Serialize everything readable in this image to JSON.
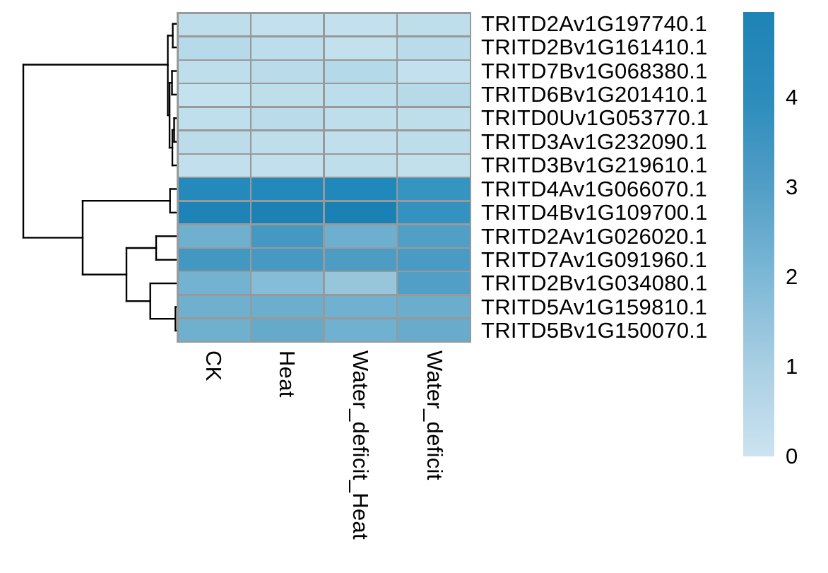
{
  "figure": {
    "background": "#ffffff",
    "description": "Clustered gene expression heatmap with row dendrogram and color legend"
  },
  "chart_data": {
    "type": "heatmap",
    "columns": [
      "CK",
      "Heat",
      "Water_deficit_Heat",
      "Water_deficit"
    ],
    "rows": [
      "TRITD2Av1G197740.1",
      "TRITD2Bv1G161410.1",
      "TRITD7Bv1G068380.1",
      "TRITD6Bv1G201410.1",
      "TRITD0Uv1G053770.1",
      "TRITD3Av1G232090.1",
      "TRITD3Bv1G219610.1",
      "TRITD4Av1G066070.1",
      "TRITD4Bv1G109700.1",
      "TRITD2Av1G026020.1",
      "TRITD7Av1G091960.1",
      "TRITD2Bv1G034080.1",
      "TRITD5Av1G159810.1",
      "TRITD5Bv1G150070.1"
    ],
    "cell_colors": [
      [
        "#BFDEEB",
        "#C2E0ED",
        "#C2E0ED",
        "#BEDEEB"
      ],
      [
        "#B6DAE9",
        "#BCDDEB",
        "#C3E0ED",
        "#B9DBEA"
      ],
      [
        "#BFDEEB",
        "#B9DBEA",
        "#B4D9E8",
        "#C2E0ED"
      ],
      [
        "#C4E1EE",
        "#BEDEEB",
        "#BCDDEB",
        "#B7DAE9"
      ],
      [
        "#C0DFEC",
        "#B9DBEA",
        "#BFDEEC",
        "#BFDEEC"
      ],
      [
        "#BCDCEA",
        "#BFDEEC",
        "#C0DEEC",
        "#BEDDEB"
      ],
      [
        "#C1DFEC",
        "#C1DFEC",
        "#BFDEEC",
        "#C2DFEC"
      ],
      [
        "#2589BB",
        "#2289BA",
        "#2088BA",
        "#3694C0"
      ],
      [
        "#1E83B7",
        "#1C82B6",
        "#1A81B5",
        "#3392BF"
      ],
      [
        "#6FB0CF",
        "#4498C2",
        "#6DAFCE",
        "#519FC6"
      ],
      [
        "#4398C2",
        "#4599C3",
        "#4C9CC4",
        "#4A9BC4"
      ],
      [
        "#74B2D1",
        "#85BCD7",
        "#96C5DC",
        "#519FC6"
      ],
      [
        "#6FB0CF",
        "#6CAECD",
        "#70B0D0",
        "#6BADCD"
      ],
      [
        "#6FB0CF",
        "#65AACB",
        "#70B0D0",
        "#68ABCC"
      ]
    ],
    "values_estimated": [
      [
        0.37,
        0.29,
        0.29,
        0.4
      ],
      [
        0.63,
        0.46,
        0.26,
        0.54
      ],
      [
        0.37,
        0.54,
        0.69,
        0.29
      ],
      [
        0.23,
        0.4,
        0.46,
        0.57
      ],
      [
        0.34,
        0.54,
        0.37,
        0.37
      ],
      [
        0.46,
        0.37,
        0.34,
        0.4
      ],
      [
        0.31,
        0.31,
        0.37,
        0.29
      ],
      [
        4.45,
        4.65,
        4.78,
        3.74
      ],
      [
        4.9,
        4.95,
        4.95,
        3.82
      ],
      [
        2.33,
        3.37,
        2.37,
        3.03
      ],
      [
        3.39,
        3.34,
        3.16,
        3.21
      ],
      [
        2.21,
        1.82,
        1.43,
        3.03
      ],
      [
        2.33,
        2.4,
        2.3,
        2.42
      ],
      [
        2.33,
        2.56,
        2.3,
        2.49
      ]
    ],
    "grid_color": "#999999",
    "dendrogram_color": "#000000",
    "colorbar": {
      "min": 0,
      "max": 4.95,
      "ticks": [
        "4",
        "3",
        "2",
        "1",
        "0"
      ],
      "tick_values": [
        4,
        3,
        2,
        1,
        0
      ],
      "gradient_values": [
        0,
        1,
        2,
        3,
        4,
        4.95
      ],
      "gradient_stops": [
        "#CCE3F0",
        "#A9CFE3",
        "#7DB8D6",
        "#529EC6",
        "#2C8CBC",
        "#1E83B6"
      ]
    },
    "row_dendrogram_segments": [
      [
        251,
        33.7,
        244.5,
        33.7
      ],
      [
        251,
        67.1,
        244.5,
        67.1
      ],
      [
        244.5,
        33.7,
        244.5,
        67.1
      ],
      [
        244.5,
        50.4,
        237.5,
        50.4
      ],
      [
        251,
        100.5,
        243.5,
        100.5
      ],
      [
        251,
        133.9,
        243.5,
        133.9
      ],
      [
        243.5,
        100.5,
        243.5,
        133.9
      ],
      [
        243.5,
        117.2,
        240,
        117.2
      ],
      [
        251,
        167.3,
        246.5,
        167.3
      ],
      [
        251,
        200.7,
        246.5,
        200.7
      ],
      [
        246.5,
        167.3,
        246.5,
        200.7
      ],
      [
        246.5,
        184,
        244,
        184
      ],
      [
        251,
        234.1,
        244,
        234.1
      ],
      [
        244,
        184,
        244,
        234.1
      ],
      [
        244,
        209,
        240,
        209
      ],
      [
        240,
        117.2,
        240,
        209
      ],
      [
        240,
        163.1,
        237.5,
        163.1
      ],
      [
        237.5,
        50.4,
        237.5,
        163.1
      ],
      [
        237.5,
        91.5,
        33,
        91.5
      ],
      [
        251,
        267.5,
        240.7,
        267.5
      ],
      [
        251,
        300.9,
        240.7,
        300.9
      ],
      [
        240.7,
        267.5,
        240.7,
        300.9
      ],
      [
        240.7,
        284.2,
        117,
        284.2
      ],
      [
        251,
        334.3,
        221,
        334.3
      ],
      [
        251,
        367.7,
        221,
        367.7
      ],
      [
        221,
        334.3,
        221,
        367.7
      ],
      [
        221,
        351,
        179,
        351
      ],
      [
        251,
        401.1,
        212.7,
        401.1
      ],
      [
        251,
        434.5,
        248.3,
        434.5
      ],
      [
        251,
        467.9,
        248.3,
        467.9
      ],
      [
        248.3,
        434.5,
        248.3,
        467.9
      ],
      [
        248.3,
        451.2,
        212.7,
        451.2
      ],
      [
        212.7,
        401.1,
        212.7,
        451.2
      ],
      [
        212.7,
        426.2,
        179,
        426.2
      ],
      [
        179,
        351,
        179,
        426.2
      ],
      [
        179,
        388.6,
        117,
        388.6
      ],
      [
        117,
        284.2,
        117,
        388.6
      ],
      [
        117,
        336.4,
        33,
        336.4
      ],
      [
        33,
        91.5,
        33,
        336.4
      ]
    ]
  }
}
